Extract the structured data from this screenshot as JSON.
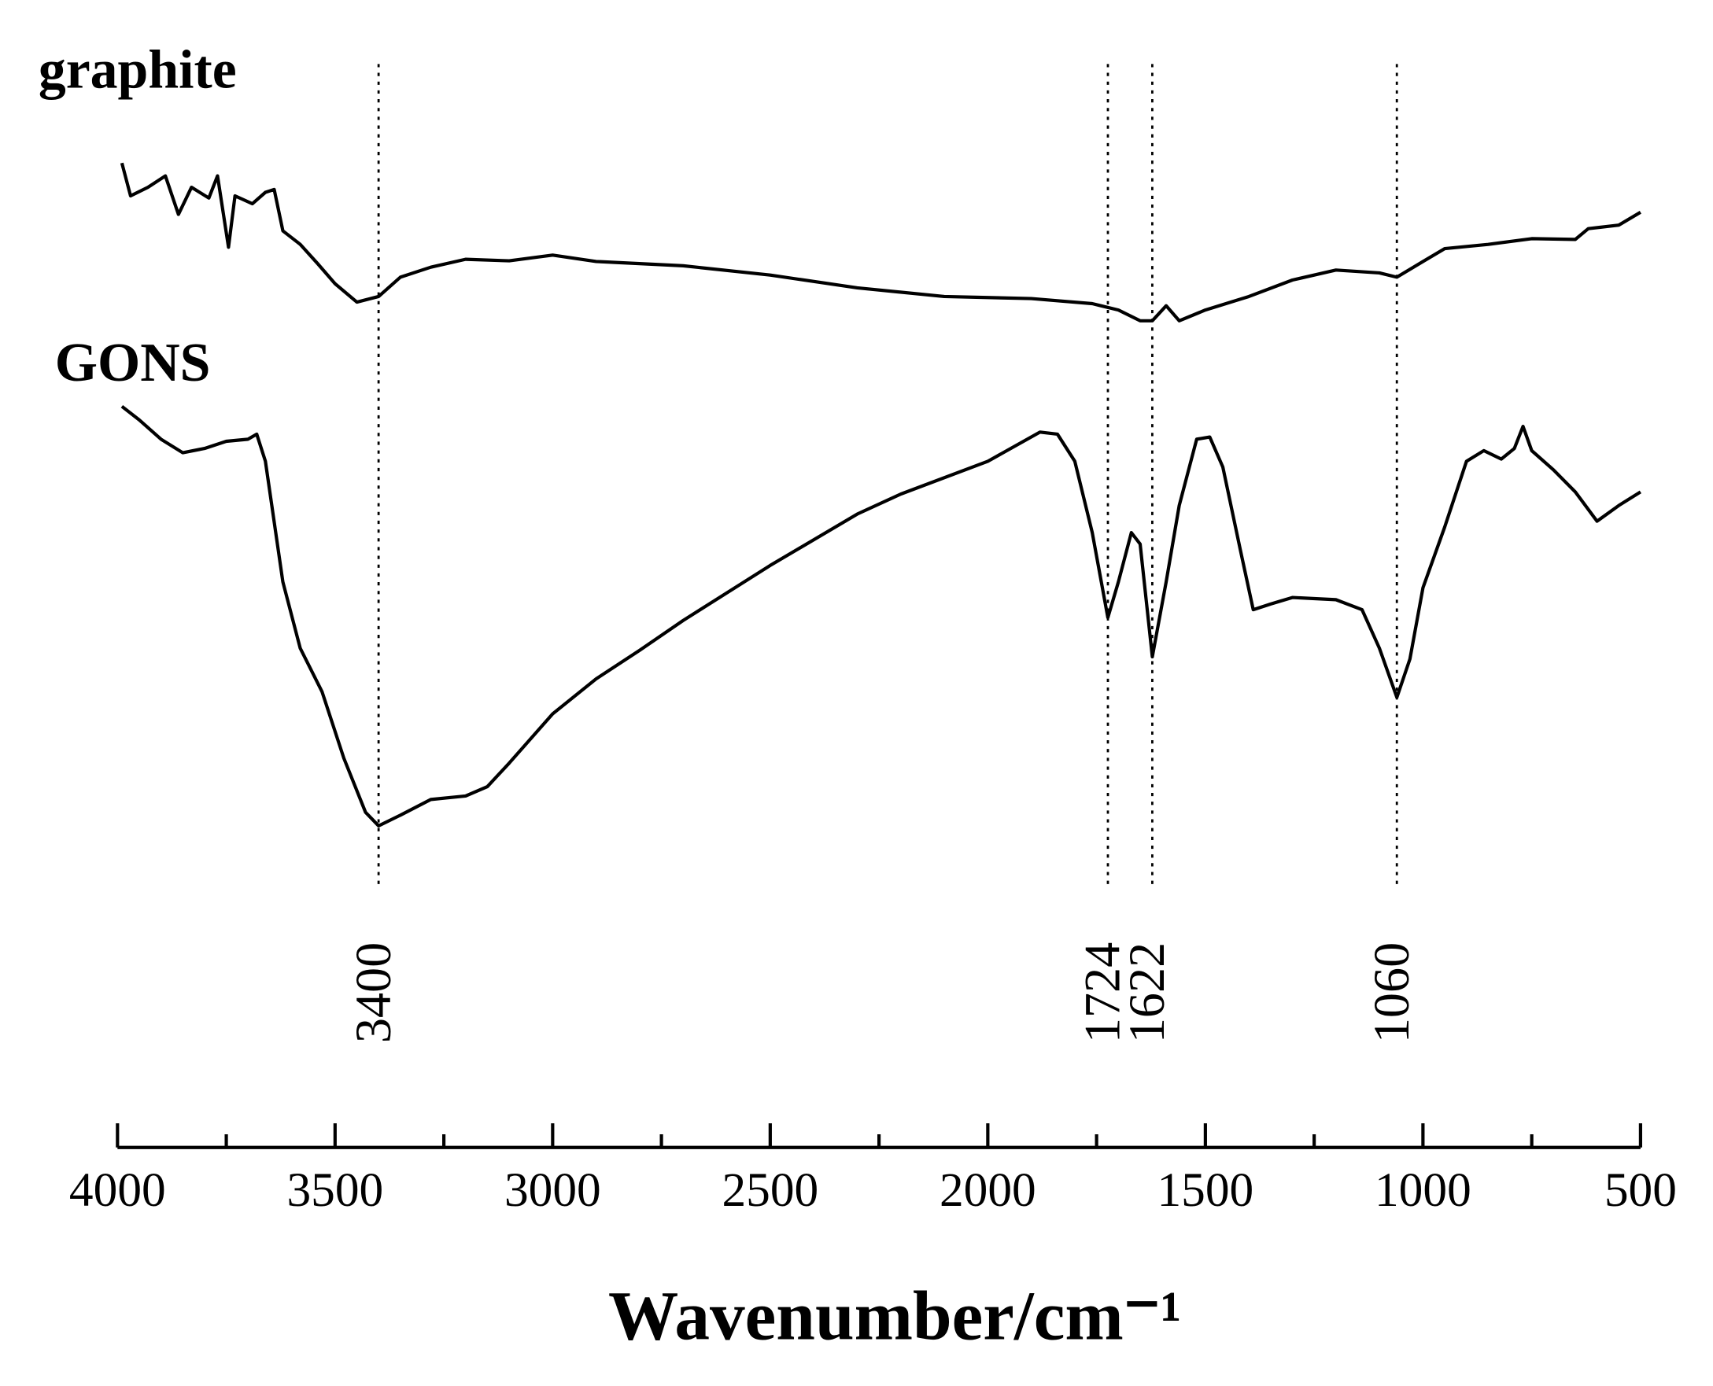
{
  "chart_data": {
    "type": "line",
    "xlabel": "Wavenumber/cm⁻¹",
    "xlim": [
      4000,
      500
    ],
    "xticks": [
      4000,
      3500,
      3000,
      2500,
      2000,
      1500,
      1000,
      500
    ],
    "xticks_minor": [
      3750,
      3250,
      2750,
      2250,
      1750,
      1250,
      750
    ],
    "ylim": [
      0,
      100
    ],
    "peak_markers": [
      3400,
      1724,
      1622,
      1060
    ],
    "series": [
      {
        "name": "graphite",
        "color": "#000000",
        "x": [
          3990,
          3970,
          3930,
          3890,
          3860,
          3830,
          3790,
          3770,
          3745,
          3730,
          3690,
          3660,
          3640,
          3620,
          3580,
          3540,
          3500,
          3450,
          3400,
          3350,
          3280,
          3200,
          3100,
          3000,
          2900,
          2700,
          2500,
          2300,
          2100,
          1900,
          1760,
          1700,
          1650,
          1622,
          1590,
          1560,
          1500,
          1400,
          1300,
          1200,
          1100,
          1060,
          1000,
          950,
          850,
          750,
          650,
          620,
          550,
          500
        ],
        "values": [
          97.2,
          92.6,
          93.8,
          95.4,
          90,
          93.8,
          92.3,
          95.4,
          85.4,
          92.6,
          91.5,
          93.1,
          93.5,
          87.7,
          85.8,
          83.1,
          80.3,
          77.7,
          78.5,
          81.2,
          82.6,
          83.7,
          83.5,
          84.3,
          83.4,
          82.8,
          81.5,
          79.7,
          78.5,
          78.2,
          77.5,
          76.6,
          75.1,
          75.1,
          77.2,
          75.1,
          76.6,
          78.5,
          80.8,
          82.2,
          81.8,
          81.2,
          83.4,
          85.2,
          85.8,
          86.6,
          86.5,
          88,
          88.5,
          90.3
        ]
      },
      {
        "name": "GONS",
        "color": "#000000",
        "x": [
          3990,
          3950,
          3900,
          3850,
          3800,
          3750,
          3700,
          3680,
          3660,
          3620,
          3580,
          3530,
          3480,
          3430,
          3400,
          3350,
          3280,
          3200,
          3150,
          3100,
          3000,
          2900,
          2800,
          2700,
          2500,
          2300,
          2200,
          2000,
          1880,
          1840,
          1800,
          1760,
          1724,
          1700,
          1670,
          1650,
          1622,
          1590,
          1560,
          1520,
          1490,
          1460,
          1420,
          1390,
          1350,
          1300,
          1200,
          1140,
          1100,
          1060,
          1030,
          1000,
          950,
          900,
          860,
          820,
          790,
          770,
          750,
          700,
          650,
          600,
          550,
          500
        ],
        "values": [
          63.1,
          61.2,
          58.5,
          56.6,
          57.2,
          58.2,
          58.5,
          59.2,
          55.4,
          38.5,
          29.2,
          23.1,
          13.8,
          6.2,
          4.3,
          5.8,
          8,
          8.5,
          9.8,
          13.1,
          20,
          24.9,
          28.9,
          33.1,
          40.8,
          48,
          50.8,
          55.4,
          59.5,
          59.2,
          55.4,
          45.4,
          33.5,
          38.5,
          45.4,
          43.8,
          28,
          38.5,
          49.2,
          58.5,
          58.8,
          54.6,
          43.1,
          34.6,
          35.4,
          36.3,
          36,
          34.6,
          29.2,
          22.3,
          27.7,
          37.7,
          46.2,
          55.4,
          56.9,
          55.7,
          57.2,
          60.3,
          56.9,
          54.2,
          51.1,
          47,
          49.2,
          51.1
        ]
      }
    ]
  }
}
